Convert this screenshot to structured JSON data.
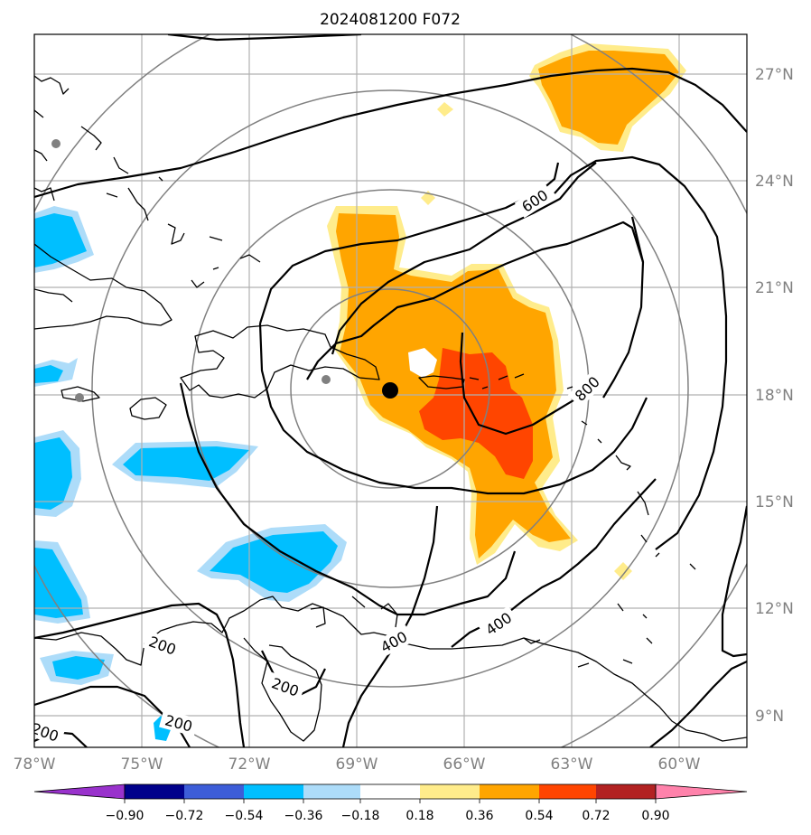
{
  "title": "2024081200 F072",
  "map": {
    "lon_ticks": [
      "78°W",
      "75°W",
      "72°W",
      "69°W",
      "66°W",
      "63°W",
      "60°W"
    ],
    "lat_ticks": [
      "27°N",
      "24°N",
      "21°N",
      "18°N",
      "15°N",
      "12°N",
      "9°N"
    ],
    "contour_labels": [
      "600",
      "800",
      "400",
      "400",
      "200",
      "200",
      "200",
      "200"
    ],
    "storm_center": {
      "lon": -68.2,
      "lat": 18.1
    },
    "city_markers": [
      {
        "lon": -78.0,
        "lat": 25.0
      },
      {
        "lon": -77.2,
        "lat": 18.0
      },
      {
        "lon": -69.9,
        "lat": 18.5
      }
    ],
    "range_ring_center": {
      "lon": -67.0,
      "lat": 17.7
    }
  },
  "colorbar": {
    "labels": [
      "−0.90",
      "−0.72",
      "−0.54",
      "−0.36",
      "−0.18",
      "0.18",
      "0.36",
      "0.54",
      "0.72",
      "0.90"
    ],
    "colors": [
      "#9932CC",
      "#00008B",
      "#3D5DD8",
      "#00BFFF",
      "#ADDCF9",
      "#FFFFFF",
      "#FFEC8B",
      "#FFA500",
      "#FF4500",
      "#B22222",
      "#FF82AB"
    ]
  },
  "colors": {
    "orange": "#FFA500",
    "yellow": "#FFEC8B",
    "red": "#FF4500",
    "cyan": "#00BFFF",
    "lightblue": "#ADDCF9",
    "ring": "#808080",
    "grid": "#B0B0B0"
  }
}
